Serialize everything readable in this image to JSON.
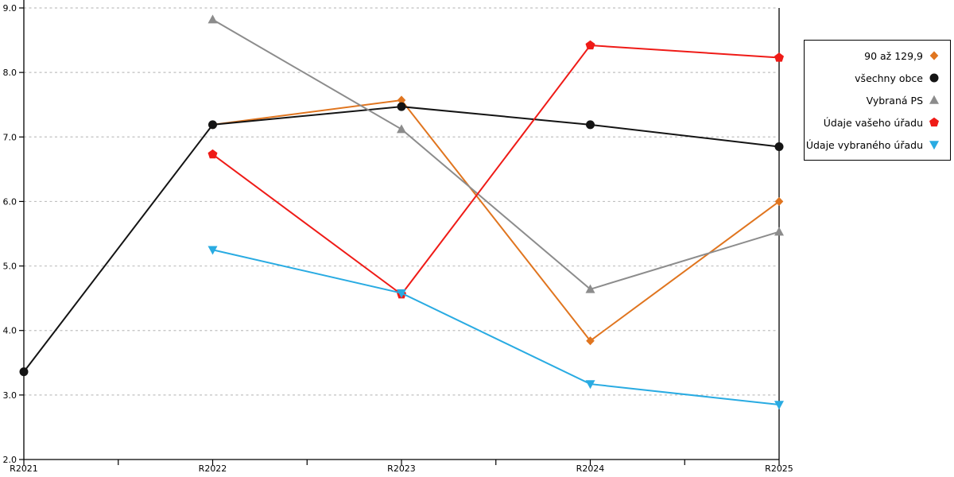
{
  "chart_data": {
    "type": "line",
    "title": "",
    "xlabel": "",
    "ylabel": "",
    "categories": [
      "R2021",
      "R2022",
      "R2023",
      "R2024",
      "R2025"
    ],
    "ylim": [
      2.0,
      9.0
    ],
    "yticks": [
      "9.0",
      "8.0",
      "7.0",
      "6.0",
      "5.0",
      "4.0",
      "3.0",
      "2.0"
    ],
    "grid": "horizontal-dotted",
    "gridline_color": "#c0c0c0",
    "axis_color": "#000000",
    "legend_position": "right-outside-framed",
    "series": [
      {
        "name": "90 až 129,9",
        "color": "#e0751f",
        "marker": "diamond",
        "values": [
          null,
          7.19,
          7.57,
          3.84,
          6.0
        ]
      },
      {
        "name": "všechny obce",
        "color": "#141414",
        "marker": "circle",
        "values": [
          3.36,
          7.19,
          7.47,
          7.19,
          6.85
        ]
      },
      {
        "name": "Vybraná PS",
        "color": "#8c8c8c",
        "marker": "triangle-up",
        "values": [
          null,
          8.82,
          7.12,
          4.64,
          5.53
        ]
      },
      {
        "name": "Údaje vašeho úřadu",
        "color": "#ef1b17",
        "marker": "pentagon",
        "values": [
          null,
          6.73,
          4.56,
          8.42,
          8.23
        ]
      },
      {
        "name": "Údaje vybraného úřadu",
        "color": "#29abe2",
        "marker": "triangle-down",
        "values": [
          null,
          5.25,
          4.58,
          3.17,
          2.85
        ]
      }
    ]
  }
}
